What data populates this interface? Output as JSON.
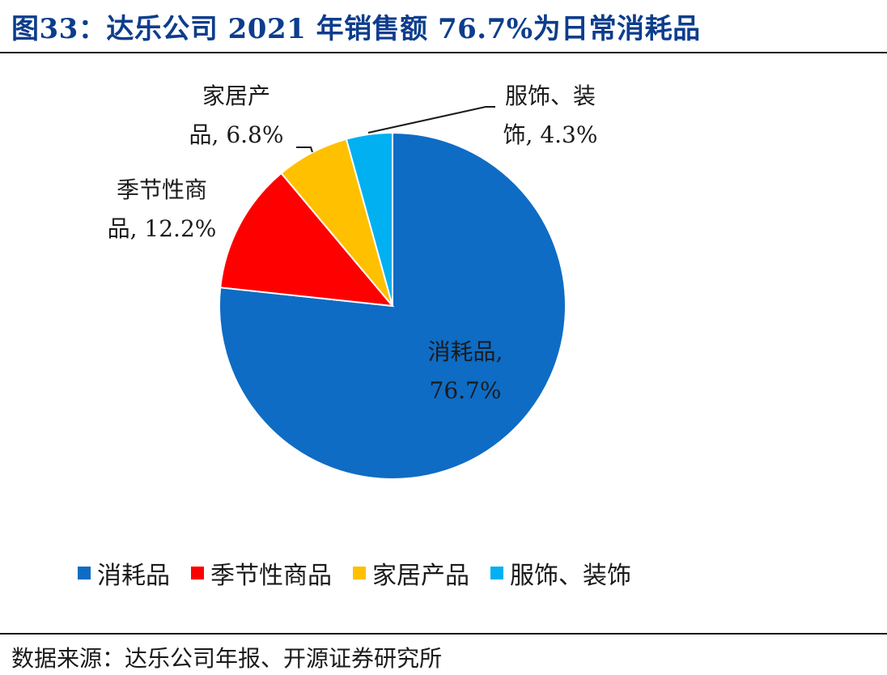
{
  "title": "图33：达乐公司 2021 年销售额 76.7%为日常消耗品",
  "source": "数据来源：达乐公司年报、开源证券研究所",
  "chart_data": {
    "type": "pie",
    "title": "",
    "slices": [
      {
        "name": "消耗品",
        "value": 76.7,
        "color": "#0e6cc4",
        "label_lines": [
          "消耗品,",
          "76.7%"
        ]
      },
      {
        "name": "季节性商品",
        "value": 12.2,
        "color": "#ff0000",
        "label_lines": [
          "季节性商",
          "品, 12.2%"
        ]
      },
      {
        "name": "家居产品",
        "value": 6.8,
        "color": "#ffc000",
        "label_lines": [
          "家居产",
          "品, 6.8%"
        ]
      },
      {
        "name": "服饰、装饰",
        "value": 4.3,
        "color": "#00b0f0",
        "label_lines": [
          "服饰、装",
          "饰, 4.3%"
        ]
      }
    ],
    "legend": [
      "消耗品",
      "季节性商品",
      "家居产品",
      "服饰、装饰"
    ],
    "legend_position": "bottom"
  }
}
